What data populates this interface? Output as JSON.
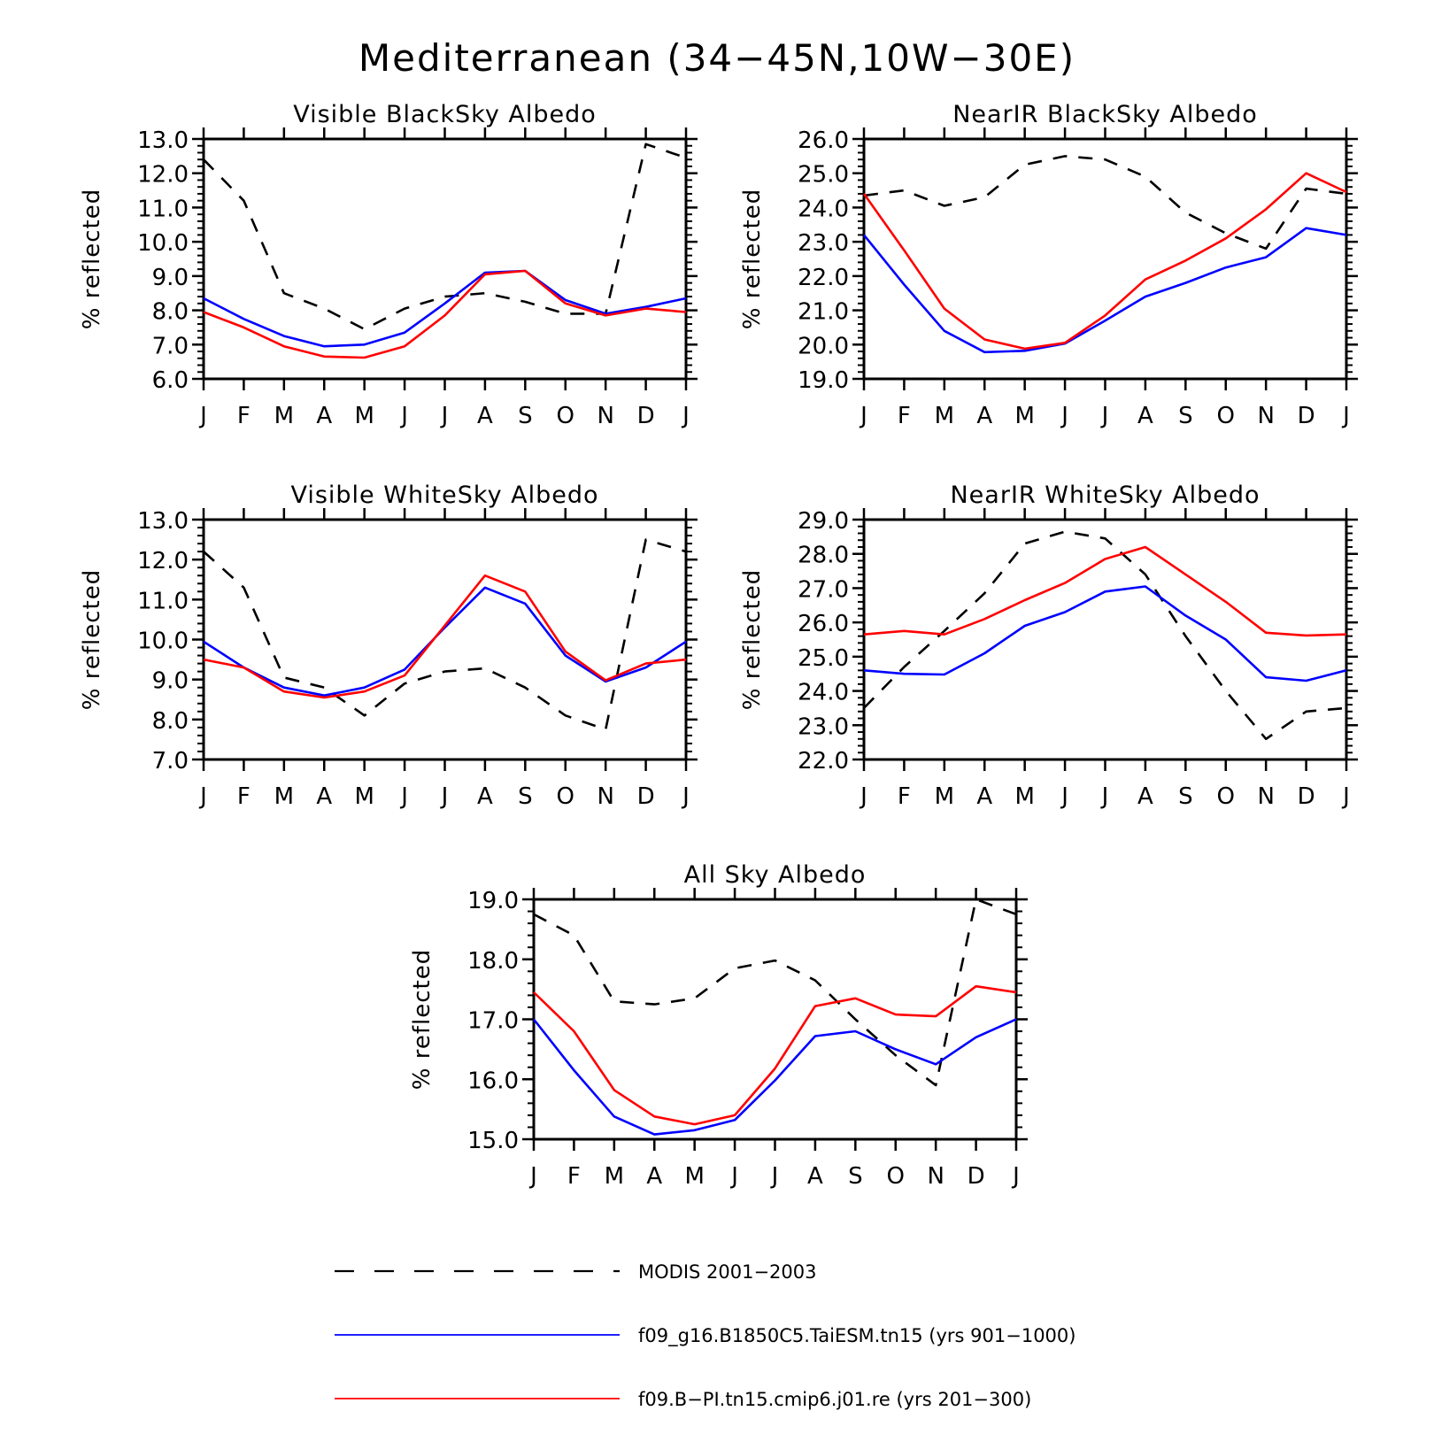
{
  "title": "Mediterranean (34−45N,10W−30E)",
  "colors": {
    "modis": "#000000",
    "blue": "#0000ff",
    "red": "#ff0000"
  },
  "legend": [
    {
      "label": "MODIS 2001−2003",
      "color": "#000000",
      "dash": true
    },
    {
      "label": "f09_g16.B1850C5.TaiESM.tn15 (yrs 901−1000)",
      "color": "#0000ff",
      "dash": false
    },
    {
      "label": "f09.B−PI.tn15.cmip6.j01.re (yrs 201−300)",
      "color": "#ff0000",
      "dash": false
    }
  ],
  "chart_data": [
    {
      "type": "line",
      "title": "Visible BlackSky Albedo",
      "ylabel": "% reflected",
      "categories": [
        "J",
        "F",
        "M",
        "A",
        "M",
        "J",
        "J",
        "A",
        "S",
        "O",
        "N",
        "D",
        "J"
      ],
      "ylim": [
        6.0,
        13.0
      ],
      "yticks": [
        "6.0",
        "7.0",
        "8.0",
        "9.0",
        "10.0",
        "11.0",
        "12.0",
        "13.0"
      ],
      "series": [
        {
          "name": "MODIS 2001−2003",
          "color": "#000000",
          "dash": true,
          "values": [
            12.4,
            11.2,
            8.5,
            8.05,
            7.45,
            8.05,
            8.4,
            8.5,
            8.25,
            7.9,
            7.9,
            12.85,
            12.45
          ]
        },
        {
          "name": "f09_g16.B1850C5.TaiESM.tn15 (yrs 901−1000)",
          "color": "#0000ff",
          "dash": false,
          "values": [
            8.35,
            7.75,
            7.25,
            6.95,
            7.0,
            7.35,
            8.2,
            9.1,
            9.15,
            8.3,
            7.9,
            8.1,
            8.35
          ]
        },
        {
          "name": "f09.B−PI.tn15.cmip6.j01.re (yrs 201−300)",
          "color": "#ff0000",
          "dash": false,
          "values": [
            7.95,
            7.5,
            6.95,
            6.65,
            6.62,
            6.95,
            7.85,
            9.05,
            9.15,
            8.2,
            7.85,
            8.05,
            7.95
          ]
        }
      ]
    },
    {
      "type": "line",
      "title": "NearIR BlackSky Albedo",
      "ylabel": "% reflected",
      "categories": [
        "J",
        "F",
        "M",
        "A",
        "M",
        "J",
        "J",
        "A",
        "S",
        "O",
        "N",
        "D",
        "J"
      ],
      "ylim": [
        19.0,
        26.0
      ],
      "yticks": [
        "19.0",
        "20.0",
        "21.0",
        "22.0",
        "23.0",
        "24.0",
        "25.0",
        "26.0"
      ],
      "series": [
        {
          "name": "MODIS 2001−2003",
          "color": "#000000",
          "dash": true,
          "values": [
            24.35,
            24.5,
            24.05,
            24.3,
            25.25,
            25.5,
            25.4,
            24.9,
            23.85,
            23.25,
            22.8,
            24.55,
            24.4
          ]
        },
        {
          "name": "f09_g16.B1850C5.TaiESM.tn15 (yrs 901−1000)",
          "color": "#0000ff",
          "dash": false,
          "values": [
            23.2,
            21.75,
            20.4,
            19.78,
            19.82,
            20.03,
            20.7,
            21.4,
            21.8,
            22.25,
            22.55,
            23.4,
            23.2
          ]
        },
        {
          "name": "f09.B−PI.tn15.cmip6.j01.re (yrs 201−300)",
          "color": "#ff0000",
          "dash": false,
          "values": [
            24.4,
            22.75,
            21.05,
            20.15,
            19.88,
            20.05,
            20.85,
            21.9,
            22.45,
            23.1,
            23.95,
            25.0,
            24.45
          ]
        }
      ]
    },
    {
      "type": "line",
      "title": "Visible WhiteSky Albedo",
      "ylabel": "% reflected",
      "categories": [
        "J",
        "F",
        "M",
        "A",
        "M",
        "J",
        "J",
        "A",
        "S",
        "O",
        "N",
        "D",
        "J"
      ],
      "ylim": [
        7.0,
        13.0
      ],
      "yticks": [
        "7.0",
        "8.0",
        "9.0",
        "10.0",
        "11.0",
        "12.0",
        "13.0"
      ],
      "series": [
        {
          "name": "MODIS 2001−2003",
          "color": "#000000",
          "dash": true,
          "values": [
            12.2,
            11.3,
            9.05,
            8.8,
            8.1,
            8.9,
            9.2,
            9.28,
            8.8,
            8.1,
            7.75,
            12.5,
            12.2
          ]
        },
        {
          "name": "f09_g16.B1850C5.TaiESM.tn15 (yrs 901−1000)",
          "color": "#0000ff",
          "dash": false,
          "values": [
            9.95,
            9.3,
            8.8,
            8.6,
            8.8,
            9.25,
            10.3,
            11.3,
            10.9,
            9.6,
            8.95,
            9.3,
            9.95
          ]
        },
        {
          "name": "f09.B−PI.tn15.cmip6.j01.re (yrs 201−300)",
          "color": "#ff0000",
          "dash": false,
          "values": [
            9.5,
            9.3,
            8.7,
            8.55,
            8.7,
            9.1,
            10.35,
            11.6,
            11.2,
            9.7,
            8.98,
            9.4,
            9.5
          ]
        }
      ]
    },
    {
      "type": "line",
      "title": "NearIR WhiteSky Albedo",
      "ylabel": "% reflected",
      "categories": [
        "J",
        "F",
        "M",
        "A",
        "M",
        "J",
        "J",
        "A",
        "S",
        "O",
        "N",
        "D",
        "J"
      ],
      "ylim": [
        22.0,
        29.0
      ],
      "yticks": [
        "22.0",
        "23.0",
        "24.0",
        "25.0",
        "26.0",
        "27.0",
        "28.0",
        "29.0"
      ],
      "series": [
        {
          "name": "MODIS 2001−2003",
          "color": "#000000",
          "dash": true,
          "values": [
            23.5,
            24.7,
            25.75,
            26.85,
            28.3,
            28.65,
            28.45,
            27.4,
            25.6,
            24.0,
            22.6,
            23.4,
            23.5
          ]
        },
        {
          "name": "f09_g16.B1850C5.TaiESM.tn15 (yrs 901−1000)",
          "color": "#0000ff",
          "dash": false,
          "values": [
            24.6,
            24.5,
            24.48,
            25.1,
            25.9,
            26.3,
            26.9,
            27.05,
            26.2,
            25.5,
            24.4,
            24.3,
            24.6
          ]
        },
        {
          "name": "f09.B−PI.tn15.cmip6.j01.re (yrs 201−300)",
          "color": "#ff0000",
          "dash": false,
          "values": [
            25.65,
            25.75,
            25.65,
            26.1,
            26.65,
            27.15,
            27.85,
            28.2,
            27.4,
            26.6,
            25.7,
            25.62,
            25.65
          ]
        }
      ]
    },
    {
      "type": "line",
      "title": "All Sky Albedo",
      "ylabel": "% reflected",
      "categories": [
        "J",
        "F",
        "M",
        "A",
        "M",
        "J",
        "J",
        "A",
        "S",
        "O",
        "N",
        "D",
        "J"
      ],
      "ylim": [
        15.0,
        19.0
      ],
      "yticks": [
        "15.0",
        "16.0",
        "17.0",
        "18.0",
        "19.0"
      ],
      "series": [
        {
          "name": "MODIS 2001−2003",
          "color": "#000000",
          "dash": true,
          "values": [
            18.75,
            18.4,
            17.3,
            17.25,
            17.35,
            17.85,
            17.98,
            17.65,
            17.0,
            16.4,
            15.9,
            19.0,
            18.75
          ]
        },
        {
          "name": "f09_g16.B1850C5.TaiESM.tn15 (yrs 901−1000)",
          "color": "#0000ff",
          "dash": false,
          "values": [
            17.0,
            16.15,
            15.38,
            15.08,
            15.15,
            15.32,
            15.98,
            16.72,
            16.8,
            16.5,
            16.25,
            16.7,
            17.0
          ]
        },
        {
          "name": "f09.B−PI.tn15.cmip6.j01.re (yrs 201−300)",
          "color": "#ff0000",
          "dash": false,
          "values": [
            17.45,
            16.8,
            15.82,
            15.38,
            15.25,
            15.4,
            16.18,
            17.22,
            17.35,
            17.08,
            17.05,
            17.55,
            17.45
          ]
        }
      ]
    }
  ]
}
